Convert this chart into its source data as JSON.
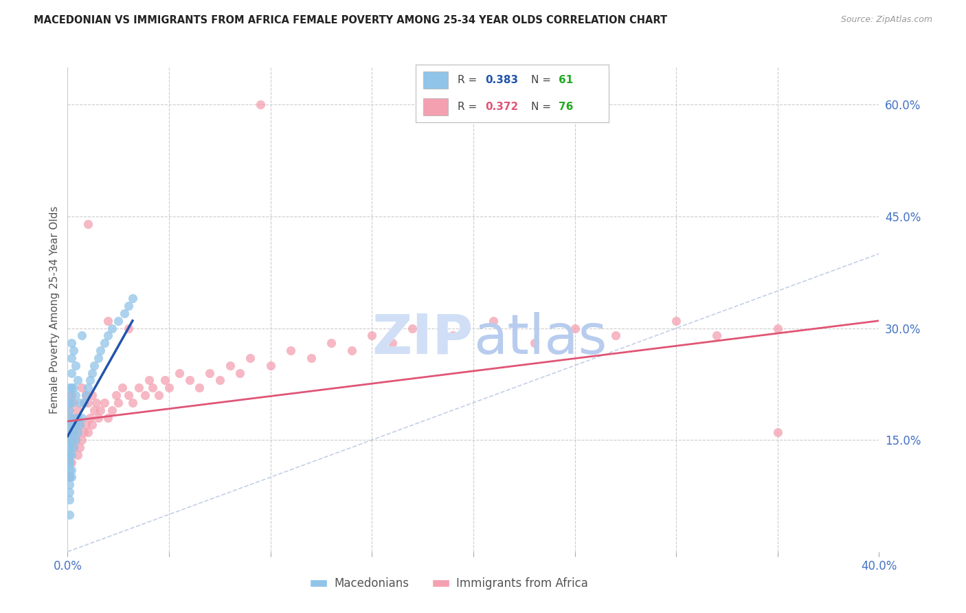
{
  "title": "MACEDONIAN VS IMMIGRANTS FROM AFRICA FEMALE POVERTY AMONG 25-34 YEAR OLDS CORRELATION CHART",
  "source": "Source: ZipAtlas.com",
  "ylabel": "Female Poverty Among 25-34 Year Olds",
  "xlim": [
    0.0,
    0.4
  ],
  "ylim": [
    0.0,
    0.65
  ],
  "ytick_positions": [
    0.0,
    0.15,
    0.3,
    0.45,
    0.6
  ],
  "ytick_labels": [
    "",
    "15.0%",
    "30.0%",
    "45.0%",
    "60.0%"
  ],
  "color_blue": "#90c4e8",
  "color_pink": "#f4a0b0",
  "color_blue_line": "#2255aa",
  "color_pink_line": "#e05575",
  "color_axis_labels": "#4472C4",
  "watermark_color": "#d0dff5",
  "background_color": "#ffffff",
  "grid_color": "#cccccc",
  "title_color": "#222222",
  "mac_x": [
    0.001,
    0.001,
    0.001,
    0.001,
    0.001,
    0.001,
    0.001,
    0.001,
    0.001,
    0.001,
    0.001,
    0.001,
    0.001,
    0.001,
    0.001,
    0.001,
    0.001,
    0.001,
    0.001,
    0.001,
    0.002,
    0.002,
    0.002,
    0.002,
    0.002,
    0.002,
    0.002,
    0.002,
    0.002,
    0.002,
    0.003,
    0.003,
    0.003,
    0.003,
    0.003,
    0.004,
    0.004,
    0.004,
    0.004,
    0.005,
    0.005,
    0.005,
    0.006,
    0.006,
    0.007,
    0.007,
    0.008,
    0.009,
    0.01,
    0.011,
    0.012,
    0.013,
    0.015,
    0.016,
    0.018,
    0.02,
    0.022,
    0.025,
    0.028,
    0.03,
    0.032
  ],
  "mac_y": [
    0.05,
    0.07,
    0.08,
    0.09,
    0.1,
    0.11,
    0.12,
    0.13,
    0.14,
    0.15,
    0.16,
    0.17,
    0.18,
    0.19,
    0.2,
    0.21,
    0.22,
    0.14,
    0.13,
    0.12,
    0.1,
    0.11,
    0.13,
    0.15,
    0.17,
    0.2,
    0.22,
    0.24,
    0.26,
    0.28,
    0.14,
    0.16,
    0.18,
    0.22,
    0.27,
    0.15,
    0.17,
    0.21,
    0.25,
    0.16,
    0.18,
    0.23,
    0.17,
    0.2,
    0.18,
    0.29,
    0.2,
    0.21,
    0.22,
    0.23,
    0.24,
    0.25,
    0.26,
    0.27,
    0.28,
    0.29,
    0.3,
    0.31,
    0.32,
    0.33,
    0.34
  ],
  "afr_x": [
    0.001,
    0.001,
    0.001,
    0.001,
    0.002,
    0.002,
    0.002,
    0.002,
    0.003,
    0.003,
    0.003,
    0.004,
    0.004,
    0.005,
    0.005,
    0.005,
    0.006,
    0.006,
    0.007,
    0.007,
    0.008,
    0.008,
    0.009,
    0.009,
    0.01,
    0.01,
    0.011,
    0.012,
    0.012,
    0.013,
    0.014,
    0.015,
    0.016,
    0.018,
    0.02,
    0.022,
    0.024,
    0.025,
    0.027,
    0.03,
    0.032,
    0.035,
    0.038,
    0.04,
    0.042,
    0.045,
    0.048,
    0.05,
    0.055,
    0.06,
    0.065,
    0.07,
    0.075,
    0.08,
    0.085,
    0.09,
    0.1,
    0.11,
    0.12,
    0.13,
    0.14,
    0.15,
    0.16,
    0.17,
    0.19,
    0.21,
    0.23,
    0.25,
    0.27,
    0.3,
    0.32,
    0.35,
    0.01,
    0.02,
    0.03,
    0.35
  ],
  "afr_y": [
    0.1,
    0.13,
    0.16,
    0.19,
    0.12,
    0.15,
    0.18,
    0.21,
    0.14,
    0.17,
    0.2,
    0.15,
    0.18,
    0.13,
    0.16,
    0.19,
    0.14,
    0.17,
    0.15,
    0.22,
    0.16,
    0.2,
    0.17,
    0.21,
    0.16,
    0.2,
    0.18,
    0.17,
    0.21,
    0.19,
    0.2,
    0.18,
    0.19,
    0.2,
    0.18,
    0.19,
    0.21,
    0.2,
    0.22,
    0.21,
    0.2,
    0.22,
    0.21,
    0.23,
    0.22,
    0.21,
    0.23,
    0.22,
    0.24,
    0.23,
    0.22,
    0.24,
    0.23,
    0.25,
    0.24,
    0.26,
    0.25,
    0.27,
    0.26,
    0.28,
    0.27,
    0.29,
    0.28,
    0.3,
    0.29,
    0.31,
    0.28,
    0.3,
    0.29,
    0.31,
    0.29,
    0.3,
    0.44,
    0.31,
    0.3,
    0.16
  ],
  "afr_outlier_x": [
    0.095
  ],
  "afr_outlier_y": [
    0.6
  ],
  "blue_line_x": [
    0.0,
    0.032
  ],
  "blue_line_y": [
    0.155,
    0.31
  ],
  "pink_line_x": [
    0.0,
    0.4
  ],
  "pink_line_y": [
    0.175,
    0.31
  ]
}
